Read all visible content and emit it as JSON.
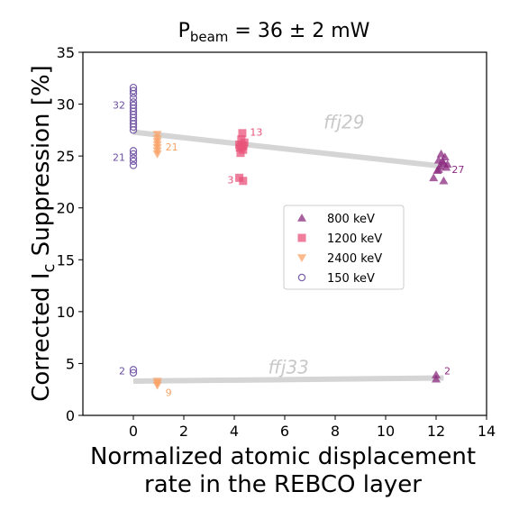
{
  "chart_data": {
    "type": "scatter",
    "title": {
      "base": "P",
      "sub": "beam",
      "rest": " = 36 ± 2 mW"
    },
    "xlabel": [
      "Normalized atomic displacement",
      "rate in the REBCO layer"
    ],
    "ylabel": {
      "pre": "Corrected I",
      "sub": "c",
      "post": " Suppression [%]"
    },
    "xlim": [
      -2,
      14
    ],
    "ylim": [
      0,
      35
    ],
    "xticks": [
      0,
      2,
      4,
      6,
      8,
      10,
      12,
      14
    ],
    "yticks": [
      0,
      5,
      10,
      15,
      20,
      25,
      30,
      35
    ],
    "grid": false,
    "legend_placement": "center-right",
    "legend": [
      {
        "label": "800 keV",
        "marker": "triangle-up",
        "color": "#8b2a7f"
      },
      {
        "label": "1200 keV",
        "marker": "square",
        "color": "#e8537a"
      },
      {
        "label": "2400 keV",
        "marker": "triangle-down",
        "color": "#f9a266"
      },
      {
        "label": "150 keV",
        "marker": "circle-open",
        "color": "#6c4fa0"
      }
    ],
    "fits": [
      {
        "label": "ffj29",
        "x": [
          0,
          12.3
        ],
        "y": [
          27.3,
          24.0
        ]
      },
      {
        "label": "ffj33",
        "x": [
          0,
          12.3
        ],
        "y": [
          3.3,
          3.6
        ]
      }
    ],
    "series": [
      {
        "name": "150 keV",
        "points": [
          [
            0,
            24.1
          ],
          [
            0,
            24.5
          ],
          [
            0,
            24.8
          ],
          [
            0,
            25.2
          ],
          [
            0,
            25.5
          ],
          [
            0,
            27.5
          ],
          [
            0,
            27.8
          ],
          [
            0,
            28.1
          ],
          [
            0,
            28.4
          ],
          [
            0,
            28.7
          ],
          [
            0,
            29.0
          ],
          [
            0,
            29.3
          ],
          [
            0,
            29.6
          ],
          [
            0,
            29.9
          ],
          [
            0,
            30.2
          ],
          [
            0,
            30.6
          ],
          [
            0,
            31.0
          ],
          [
            0,
            31.3
          ],
          [
            0,
            31.6
          ],
          [
            0,
            4.1
          ],
          [
            0,
            4.4
          ]
        ]
      },
      {
        "name": "2400 keV",
        "points": [
          [
            0.95,
            25.2
          ],
          [
            0.95,
            25.5
          ],
          [
            0.95,
            25.8
          ],
          [
            0.95,
            26.1
          ],
          [
            0.95,
            26.4
          ],
          [
            0.95,
            26.7
          ],
          [
            0.95,
            27.1
          ],
          [
            0.95,
            2.9
          ],
          [
            0.95,
            3.1
          ],
          [
            0.95,
            3.3
          ]
        ]
      },
      {
        "name": "1200 keV",
        "points": [
          [
            4.25,
            25.3
          ],
          [
            4.35,
            25.6
          ],
          [
            4.3,
            25.9
          ],
          [
            4.2,
            26.1
          ],
          [
            4.4,
            26.3
          ],
          [
            4.28,
            26.6
          ],
          [
            4.36,
            26.0
          ],
          [
            4.22,
            25.8
          ],
          [
            4.32,
            27.2
          ],
          [
            4.2,
            22.9
          ],
          [
            4.35,
            22.6
          ]
        ]
      },
      {
        "name": "800 keV",
        "points": [
          [
            11.9,
            22.9
          ],
          [
            12.05,
            23.6
          ],
          [
            12.15,
            24.0
          ],
          [
            12.3,
            24.3
          ],
          [
            12.1,
            24.6
          ],
          [
            12.35,
            24.9
          ],
          [
            12.2,
            25.2
          ],
          [
            12.4,
            23.9
          ],
          [
            12.25,
            24.5
          ],
          [
            12.45,
            24.2
          ],
          [
            12.3,
            22.6
          ],
          [
            12.1,
            23.7
          ],
          [
            12.0,
            3.5
          ],
          [
            12.0,
            3.9
          ]
        ]
      }
    ],
    "annotations": [
      {
        "text": "32",
        "x": 0,
        "y": 29.9,
        "color": "#6c4fa0",
        "side": "left"
      },
      {
        "text": "21",
        "x": 0,
        "y": 24.9,
        "color": "#6c4fa0",
        "side": "left"
      },
      {
        "text": "2",
        "x": 0,
        "y": 4.3,
        "color": "#6c4fa0",
        "side": "left"
      },
      {
        "text": "21",
        "x": 0.95,
        "y": 25.9,
        "color": "#f9a266",
        "side": "right"
      },
      {
        "text": "9",
        "x": 0.95,
        "y": 2.2,
        "color": "#f9a266",
        "side": "right"
      },
      {
        "text": "13",
        "x": 4.3,
        "y": 27.3,
        "color": "#e8537a",
        "side": "right"
      },
      {
        "text": "3",
        "x": 4.3,
        "y": 22.7,
        "color": "#e8537a",
        "side": "left"
      },
      {
        "text": "27",
        "x": 12.3,
        "y": 23.7,
        "color": "#8b2a7f",
        "side": "right"
      },
      {
        "text": "2",
        "x": 12.0,
        "y": 4.3,
        "color": "#8b2a7f",
        "side": "right"
      }
    ]
  }
}
